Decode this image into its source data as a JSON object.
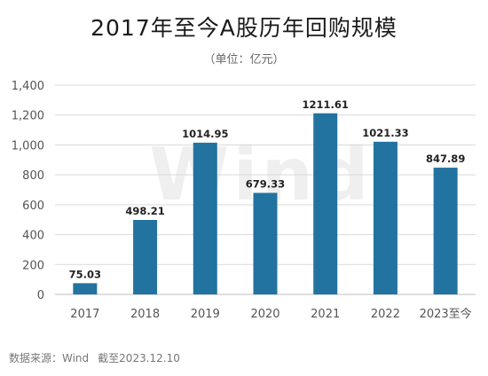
{
  "title": "2017年至今A股历年回购规模",
  "subtitle": "（单位：亿元）",
  "watermark": "Wind",
  "footnote": {
    "source": "数据来源：Wind",
    "date": "截至2023.12.10"
  },
  "chart_data": {
    "type": "bar",
    "title": "2017年至今A股历年回购规模",
    "ylabel": "",
    "xlabel": "",
    "categories": [
      "2017",
      "2018",
      "2019",
      "2020",
      "2021",
      "2022",
      "2023至今"
    ],
    "values": [
      75.03,
      498.21,
      1014.95,
      679.33,
      1211.61,
      1021.33,
      847.89
    ],
    "value_labels": [
      "75.03",
      "498.21",
      "1014.95",
      "679.33",
      "1211.61",
      "1021.33",
      "847.89"
    ],
    "ylim": [
      0,
      1400
    ],
    "yticks": [
      0,
      200,
      400,
      600,
      800,
      1000,
      1200,
      1400
    ],
    "ytick_labels": [
      "0",
      "200",
      "400",
      "600",
      "800",
      "1,000",
      "1,200",
      "1,400"
    ],
    "bar_color": "#2273a0",
    "grid": true,
    "legend": "none"
  }
}
